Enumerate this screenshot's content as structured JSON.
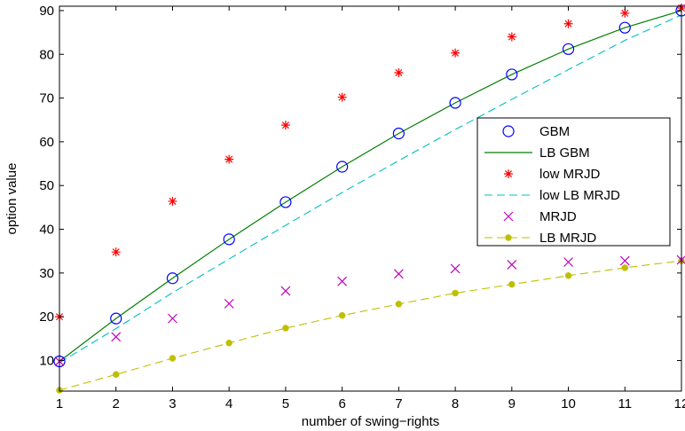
{
  "chart_data": {
    "type": "line",
    "title": "",
    "xlabel": "number of swing−rights",
    "ylabel": "option value",
    "xlim": [
      1,
      12
    ],
    "ylim": [
      3,
      91
    ],
    "x_ticks": [
      "1",
      "2",
      "3",
      "4",
      "5",
      "6",
      "7",
      "8",
      "9",
      "10",
      "11",
      "12"
    ],
    "y_ticks": [
      "10",
      "20",
      "30",
      "40",
      "50",
      "60",
      "70",
      "80",
      "90"
    ],
    "grid": false,
    "legend_position": "right",
    "x": [
      1,
      2,
      3,
      4,
      5,
      6,
      7,
      8,
      9,
      10,
      11,
      12
    ],
    "series": [
      {
        "name": "GBM",
        "style": "circle",
        "color": "#0000ff",
        "values": [
          9.8,
          19.6,
          28.8,
          37.7,
          46.2,
          54.3,
          61.9,
          68.9,
          75.4,
          81.2,
          86.1,
          90.0
        ]
      },
      {
        "name": "LB GBM",
        "style": "solid",
        "color": "#008000",
        "values": [
          9.8,
          19.6,
          28.8,
          37.7,
          46.2,
          54.3,
          61.9,
          68.9,
          75.4,
          81.2,
          86.1,
          90.0
        ]
      },
      {
        "name": "low MRJD",
        "style": "star",
        "color": "#ff0000",
        "values": [
          20.0,
          34.8,
          46.4,
          56.0,
          63.8,
          70.2,
          75.8,
          80.3,
          84.0,
          87.0,
          89.4,
          90.6
        ]
      },
      {
        "name": "low LB MRJD",
        "style": "dashed",
        "color": "#00bfbf",
        "values": [
          9.5,
          17.3,
          25.5,
          33.2,
          40.9,
          48.4,
          55.7,
          62.8,
          69.7,
          76.5,
          83.2,
          89.0
        ]
      },
      {
        "name": "MRJD",
        "style": "x",
        "color": "#bf00bf",
        "values": [
          9.8,
          15.4,
          19.6,
          23.0,
          25.9,
          28.1,
          29.8,
          31.0,
          31.9,
          32.5,
          32.8,
          33.0
        ]
      },
      {
        "name": "LB MRJD",
        "style": "dash-dot-marker",
        "color": "#bfbf00",
        "values": [
          3.2,
          6.8,
          10.5,
          14.0,
          17.4,
          20.3,
          22.9,
          25.4,
          27.4,
          29.4,
          31.2,
          32.8
        ]
      }
    ]
  }
}
